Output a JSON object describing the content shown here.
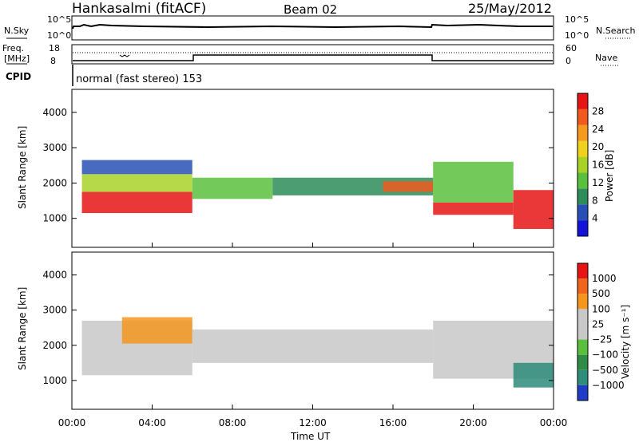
{
  "header": {
    "station": "Hankasalmi (fitACF)",
    "beam": "Beam 02",
    "date": "25/May/2012"
  },
  "noise_panel": {
    "left_label": "N.Sky",
    "left_ticks": [
      "10^5",
      "10^0"
    ],
    "right_label": "N.Search",
    "right_ticks": [
      "10^5",
      "10^0"
    ]
  },
  "freq_panel": {
    "left_label_1": "Freq.",
    "left_label_2": "[MHz]",
    "left_ticks": [
      "18",
      "8"
    ],
    "right_label": "Nave",
    "right_ticks": [
      "60",
      "0"
    ]
  },
  "cpid_panel": {
    "label": "CPID",
    "text": "normal (fast stereo) 153"
  },
  "chart_data": [
    {
      "type": "heatmap",
      "name": "power",
      "ylabel": "Slant Range [km]",
      "ylim": [
        180,
        4650
      ],
      "yticks": [
        "1000",
        "2000",
        "3000",
        "4000"
      ],
      "xlim_hours": [
        0,
        24
      ],
      "xticks": [
        "00:00",
        "04:00",
        "08:00",
        "12:00",
        "16:00",
        "20:00",
        "00:00"
      ],
      "colorbar": {
        "label": "Power [dB]",
        "ticks": [
          "4",
          "8",
          "12",
          "16",
          "20",
          "24",
          "28"
        ],
        "colors": [
          "#1414d8",
          "#2850b4",
          "#2e8c5a",
          "#5abf3c",
          "#a8d228",
          "#f0d21e",
          "#f59a1e",
          "#f05a1e",
          "#e61414"
        ]
      },
      "bands": [
        {
          "t0": 0.5,
          "t1": 6.0,
          "lo": 1150,
          "hi": 1750,
          "color": "#e61414"
        },
        {
          "t0": 0.5,
          "t1": 6.0,
          "lo": 1750,
          "hi": 2250,
          "color": "#a8d228"
        },
        {
          "t0": 0.5,
          "t1": 6.0,
          "lo": 2250,
          "hi": 2650,
          "color": "#2850b4"
        },
        {
          "t0": 6.0,
          "t1": 10.0,
          "lo": 1550,
          "hi": 2150,
          "color": "#5abf3c"
        },
        {
          "t0": 10.0,
          "t1": 18.0,
          "lo": 1650,
          "hi": 2150,
          "color": "#2e8c5a"
        },
        {
          "t0": 15.5,
          "t1": 18.0,
          "lo": 1750,
          "hi": 2050,
          "color": "#f05a1e"
        },
        {
          "t0": 18.0,
          "t1": 22.0,
          "lo": 1100,
          "hi": 1450,
          "color": "#e61414"
        },
        {
          "t0": 18.0,
          "t1": 22.0,
          "lo": 1450,
          "hi": 2600,
          "color": "#5abf3c"
        },
        {
          "t0": 22.0,
          "t1": 24.0,
          "lo": 700,
          "hi": 1800,
          "color": "#e61414"
        }
      ]
    },
    {
      "type": "heatmap",
      "name": "velocity",
      "ylabel": "Slant Range [km]",
      "ylim": [
        180,
        4650
      ],
      "yticks": [
        "1000",
        "2000",
        "3000",
        "4000"
      ],
      "xlabel": "Time UT",
      "xlim_hours": [
        0,
        24
      ],
      "xticks": [
        "00:00",
        "04:00",
        "08:00",
        "12:00",
        "16:00",
        "20:00",
        "00:00"
      ],
      "colorbar": {
        "label": "Velocity [m s⁻¹]",
        "ticks": [
          "1000",
          "500",
          "100",
          "25",
          "−25",
          "−100",
          "−500",
          "−1000"
        ],
        "colors": [
          "#1e3cc8",
          "#2e8c7a",
          "#2e8c46",
          "#5abf3c",
          "#c8c8c8",
          "#c8c8c8",
          "#f5961e",
          "#f0641e",
          "#e61414"
        ]
      },
      "bands": [
        {
          "t0": 0.5,
          "t1": 6.0,
          "lo": 1150,
          "hi": 2700,
          "color": "#c8c8c8"
        },
        {
          "t0": 2.5,
          "t1": 6.0,
          "lo": 2050,
          "hi": 2800,
          "color": "#f5961e"
        },
        {
          "t0": 6.0,
          "t1": 18.0,
          "lo": 1500,
          "hi": 2450,
          "color": "#c8c8c8"
        },
        {
          "t0": 18.0,
          "t1": 24.0,
          "lo": 1050,
          "hi": 2700,
          "color": "#c8c8c8"
        },
        {
          "t0": 22.0,
          "t1": 24.0,
          "lo": 800,
          "hi": 1500,
          "color": "#2e8c7a"
        }
      ]
    }
  ]
}
